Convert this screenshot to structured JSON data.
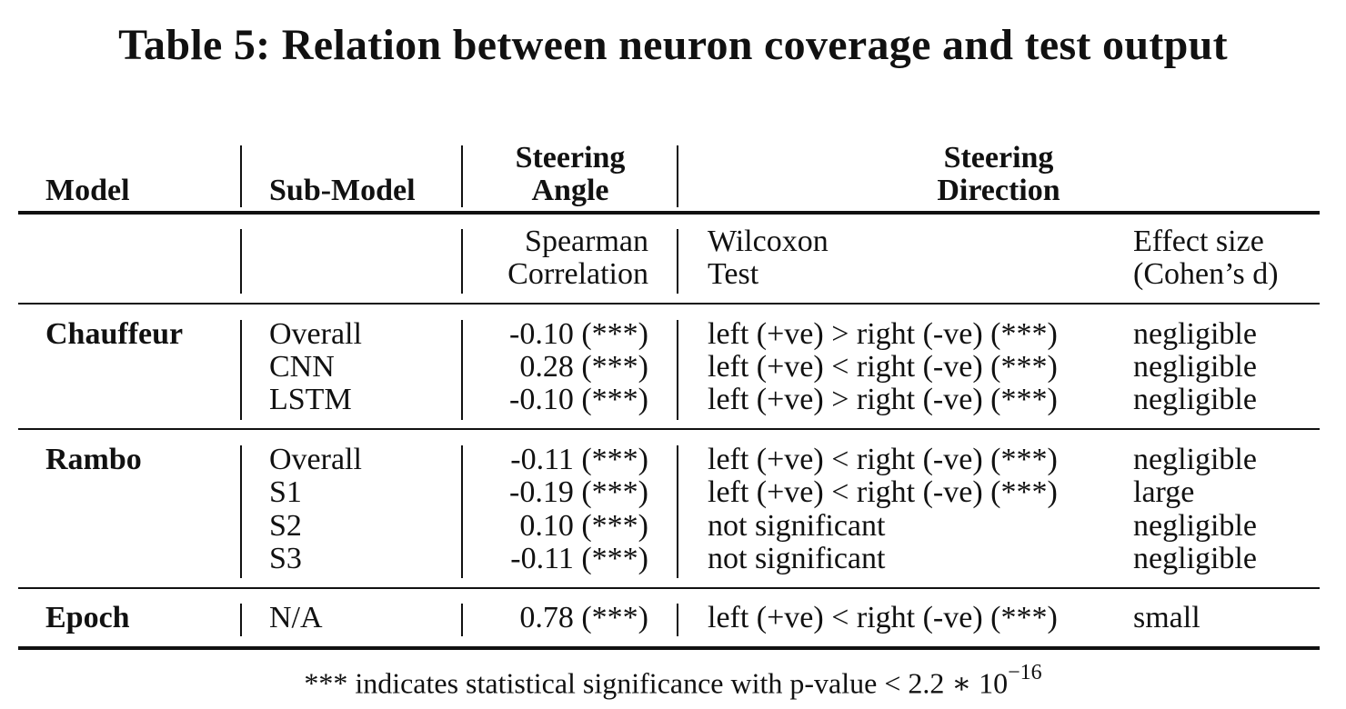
{
  "title": "Table 5: Relation between neuron coverage and test output",
  "header": {
    "model": "Model",
    "sub_model": "Sub-Model",
    "angle_line1": "Steering",
    "angle_line2": "Angle",
    "direction_line1": "Steering",
    "direction_line2": "Direction",
    "spearman_line1": "Spearman",
    "spearman_line2": "Correlation",
    "wilcoxon_line1": "Wilcoxon",
    "wilcoxon_line2": "Test",
    "effect_line1": "Effect size",
    "effect_line2": "(Cohen’s d)"
  },
  "groups": [
    {
      "model": "Chauffeur",
      "rows": [
        {
          "sub": "Overall",
          "corr": "-0.10 (***)",
          "test": "left (+ve) > right (-ve) (***)",
          "effect": "negligible"
        },
        {
          "sub": "CNN",
          "corr": "0.28 (***)",
          "test": "left (+ve) < right (-ve) (***)",
          "effect": "negligible"
        },
        {
          "sub": "LSTM",
          "corr": "-0.10 (***)",
          "test": "left (+ve) > right (-ve) (***)",
          "effect": "negligible"
        }
      ]
    },
    {
      "model": "Rambo",
      "rows": [
        {
          "sub": "Overall",
          "corr": "-0.11 (***)",
          "test": "left (+ve) < right (-ve) (***)",
          "effect": "negligible"
        },
        {
          "sub": "S1",
          "corr": "-0.19 (***)",
          "test": "left (+ve) < right (-ve) (***)",
          "effect": "large"
        },
        {
          "sub": "S2",
          "corr": "0.10 (***)",
          "test": "not significant",
          "effect": "negligible"
        },
        {
          "sub": "S3",
          "corr": "-0.11 (***)",
          "test": "not significant",
          "effect": "negligible"
        }
      ]
    },
    {
      "model": "Epoch",
      "rows": [
        {
          "sub": "N/A",
          "corr": "0.78 (***)",
          "test": "left (+ve) < right (-ve) (***)",
          "effect": "small"
        }
      ]
    }
  ],
  "footnote": {
    "text": "*** indicates statistical significance with p-value < 2.2 ∗ 10",
    "exponent": "−16"
  }
}
